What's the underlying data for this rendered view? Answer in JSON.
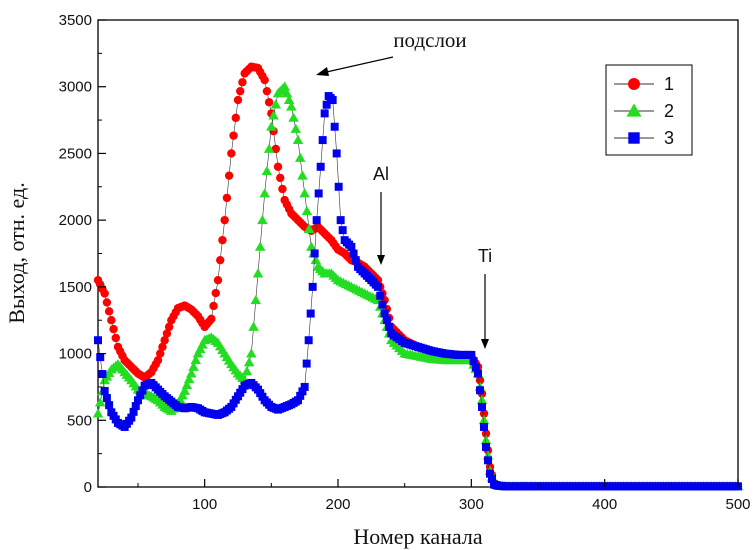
{
  "chart_data": {
    "type": "scatter",
    "xlabel": "Номер канала",
    "ylabel": "Выход, отн. ед.",
    "xlim": [
      20,
      500
    ],
    "ylim": [
      0,
      3500
    ],
    "x_ticks": [
      100,
      200,
      300,
      400,
      500
    ],
    "y_ticks": [
      0,
      500,
      1000,
      1500,
      2000,
      2500,
      3000,
      3500
    ],
    "grid": false,
    "legend_position": "top-right",
    "colors": {
      "1": "#ff0000",
      "2": "#22dd22",
      "3": "#0000ee"
    },
    "series": [
      {
        "name": "1",
        "color": "#ff0000",
        "marker": "circle",
        "x": [
          20,
          25,
          30,
          35,
          40,
          45,
          50,
          55,
          60,
          65,
          70,
          75,
          80,
          85,
          90,
          95,
          100,
          105,
          110,
          115,
          120,
          125,
          130,
          135,
          140,
          145,
          150,
          155,
          160,
          165,
          170,
          175,
          180,
          185,
          190,
          195,
          200,
          205,
          210,
          215,
          220,
          225,
          230,
          235,
          240,
          250,
          260,
          270,
          280,
          290,
          300,
          305,
          308,
          311,
          314,
          317,
          320,
          325,
          350,
          400,
          450,
          500
        ],
        "y": [
          1550,
          1450,
          1250,
          1050,
          950,
          900,
          850,
          820,
          860,
          950,
          1100,
          1250,
          1340,
          1360,
          1330,
          1280,
          1200,
          1260,
          1550,
          2000,
          2500,
          2900,
          3100,
          3150,
          3140,
          3050,
          2800,
          2400,
          2150,
          2050,
          2000,
          1950,
          1920,
          1950,
          1900,
          1850,
          1780,
          1750,
          1700,
          1680,
          1650,
          1600,
          1550,
          1400,
          1200,
          1100,
          1050,
          1020,
          1000,
          990,
          980,
          900,
          700,
          400,
          150,
          30,
          10,
          5,
          5,
          5,
          5,
          5
        ]
      },
      {
        "name": "2",
        "color": "#22dd22",
        "marker": "triangle",
        "x": [
          20,
          25,
          30,
          35,
          40,
          45,
          50,
          55,
          60,
          65,
          70,
          75,
          80,
          85,
          90,
          95,
          100,
          105,
          110,
          115,
          120,
          125,
          130,
          135,
          140,
          145,
          150,
          155,
          160,
          165,
          170,
          175,
          180,
          185,
          190,
          195,
          200,
          210,
          220,
          230,
          235,
          240,
          250,
          260,
          270,
          280,
          290,
          300,
          305,
          308,
          311,
          314,
          317,
          320,
          325,
          350,
          400,
          450,
          500
        ],
        "y": [
          550,
          800,
          880,
          920,
          860,
          800,
          730,
          700,
          680,
          650,
          600,
          570,
          620,
          720,
          850,
          1000,
          1100,
          1120,
          1080,
          1000,
          920,
          850,
          800,
          1000,
          1600,
          2200,
          2700,
          2950,
          3000,
          2850,
          2600,
          2200,
          1800,
          1650,
          1600,
          1600,
          1550,
          1500,
          1450,
          1400,
          1250,
          1100,
          1000,
          980,
          960,
          950,
          950,
          950,
          850,
          650,
          350,
          120,
          20,
          10,
          5,
          5,
          5,
          5,
          5
        ]
      },
      {
        "name": "3",
        "color": "#0000ee",
        "marker": "square",
        "x": [
          20,
          25,
          30,
          35,
          40,
          45,
          50,
          55,
          60,
          65,
          70,
          75,
          80,
          85,
          90,
          95,
          100,
          105,
          110,
          115,
          120,
          125,
          130,
          135,
          140,
          145,
          150,
          155,
          160,
          165,
          170,
          175,
          178,
          181,
          184,
          187,
          190,
          193,
          196,
          199,
          202,
          205,
          210,
          215,
          220,
          225,
          230,
          235,
          240,
          250,
          260,
          270,
          280,
          290,
          300,
          305,
          308,
          311,
          314,
          317,
          320,
          325,
          350,
          400,
          450,
          500
        ],
        "y": [
          1100,
          720,
          560,
          480,
          450,
          520,
          650,
          760,
          780,
          730,
          680,
          640,
          600,
          590,
          600,
          590,
          560,
          550,
          540,
          560,
          600,
          680,
          760,
          780,
          730,
          650,
          600,
          580,
          600,
          620,
          650,
          750,
          1100,
          1500,
          2000,
          2400,
          2800,
          2930,
          2900,
          2500,
          2000,
          1850,
          1800,
          1650,
          1600,
          1550,
          1500,
          1300,
          1150,
          1080,
          1050,
          1020,
          1000,
          990,
          990,
          850,
          600,
          300,
          100,
          20,
          10,
          5,
          5,
          5,
          5,
          5
        ]
      }
    ],
    "annotations": [
      {
        "text": "подслои",
        "target": [
          178,
          3080
        ]
      },
      {
        "text": "Al",
        "target": [
          237,
          1650
        ]
      },
      {
        "text": "Ti",
        "target": [
          311,
          1030
        ]
      }
    ]
  }
}
